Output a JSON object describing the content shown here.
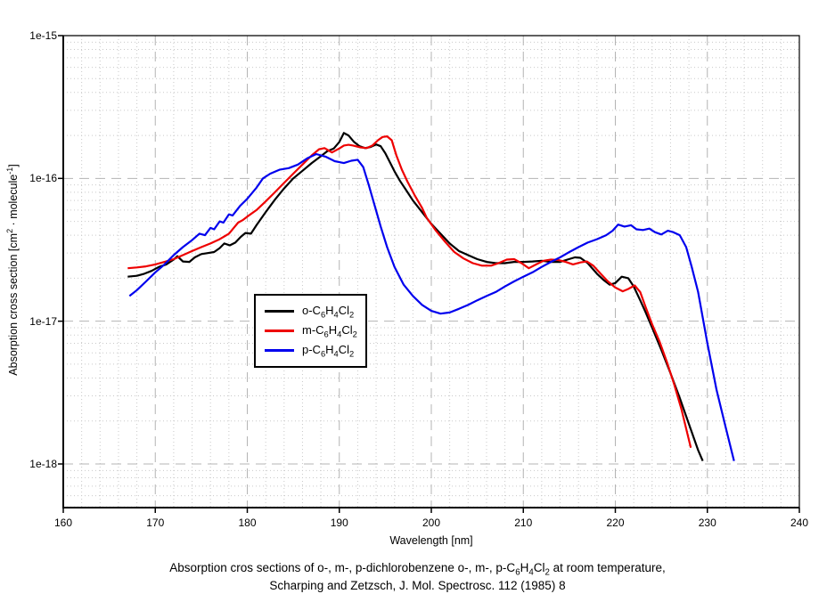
{
  "page": {
    "background": "#ffffff"
  },
  "chart_data": {
    "type": "line",
    "title": "",
    "xlabel": "Wavelength [nm]",
    "ylabel": "Absorption cross section [cm^2 · molecule^-1]",
    "yscale": "log",
    "xlim": [
      160,
      240
    ],
    "ylim": [
      4.9e-19,
      1e-15
    ],
    "grid": {
      "major_color": "#b4b4b4",
      "minor_color": "#c9c9c9",
      "major_dash": "11 7",
      "minor_dash": "1 3",
      "x_minor_step_nm": 2
    },
    "x_major_ticks": [
      160,
      170,
      180,
      190,
      200,
      210,
      220,
      230,
      240
    ],
    "y_major_ticks": [
      {
        "label": "1e-15",
        "value": 1e-15
      },
      {
        "label": "1e-16",
        "value": 1e-16
      },
      {
        "label": "1e-17",
        "value": 1e-17
      },
      {
        "label": "1e-18",
        "value": 1e-18
      }
    ],
    "legend": {
      "position": "inside-left-middle"
    },
    "series": [
      {
        "name": "o-C_6H_4Cl_2",
        "color": "#000000",
        "points": [
          [
            167.0,
            2.05e-17
          ],
          [
            168.0,
            2.08e-17
          ],
          [
            168.8,
            2.15e-17
          ],
          [
            169.6,
            2.25e-17
          ],
          [
            170.4,
            2.4e-17
          ],
          [
            171.2,
            2.5e-17
          ],
          [
            172.0,
            2.7e-17
          ],
          [
            172.4,
            2.85e-17
          ],
          [
            173.0,
            2.62e-17
          ],
          [
            173.7,
            2.6e-17
          ],
          [
            174.3,
            2.8e-17
          ],
          [
            175.0,
            2.95e-17
          ],
          [
            175.7,
            3e-17
          ],
          [
            176.4,
            3.05e-17
          ],
          [
            177.0,
            3.25e-17
          ],
          [
            177.5,
            3.5e-17
          ],
          [
            178.1,
            3.4e-17
          ],
          [
            178.7,
            3.55e-17
          ],
          [
            179.3,
            3.9e-17
          ],
          [
            179.8,
            4.15e-17
          ],
          [
            180.4,
            4.1e-17
          ],
          [
            181.0,
            4.7e-17
          ],
          [
            182.0,
            5.8e-17
          ],
          [
            183.0,
            7.1e-17
          ],
          [
            184.0,
            8.5e-17
          ],
          [
            185.0,
            1e-16
          ],
          [
            186.0,
            1.13e-16
          ],
          [
            187.0,
            1.28e-16
          ],
          [
            188.0,
            1.43e-16
          ],
          [
            188.7,
            1.55e-16
          ],
          [
            189.4,
            1.62e-16
          ],
          [
            190.0,
            1.8e-16
          ],
          [
            190.5,
            2.08e-16
          ],
          [
            191.0,
            2e-16
          ],
          [
            191.6,
            1.8e-16
          ],
          [
            192.2,
            1.68e-16
          ],
          [
            192.8,
            1.63e-16
          ],
          [
            193.4,
            1.66e-16
          ],
          [
            194.0,
            1.73e-16
          ],
          [
            194.5,
            1.68e-16
          ],
          [
            195.0,
            1.5e-16
          ],
          [
            195.5,
            1.3e-16
          ],
          [
            196.0,
            1.12e-16
          ],
          [
            196.6,
            9.6e-17
          ],
          [
            197.2,
            8.4e-17
          ],
          [
            198.0,
            7e-17
          ],
          [
            199.0,
            5.8e-17
          ],
          [
            200.0,
            4.8e-17
          ],
          [
            201.0,
            4.1e-17
          ],
          [
            202.0,
            3.5e-17
          ],
          [
            203.0,
            3.1e-17
          ],
          [
            204.0,
            2.9e-17
          ],
          [
            205.0,
            2.72e-17
          ],
          [
            206.0,
            2.6e-17
          ],
          [
            207.0,
            2.55e-17
          ],
          [
            208.0,
            2.55e-17
          ],
          [
            209.0,
            2.6e-17
          ],
          [
            210.0,
            2.6e-17
          ],
          [
            211.0,
            2.62e-17
          ],
          [
            212.0,
            2.65e-17
          ],
          [
            213.0,
            2.6e-17
          ],
          [
            214.0,
            2.6e-17
          ],
          [
            214.8,
            2.7e-17
          ],
          [
            215.6,
            2.8e-17
          ],
          [
            216.2,
            2.78e-17
          ],
          [
            217.0,
            2.55e-17
          ],
          [
            218.0,
            2.15e-17
          ],
          [
            218.7,
            1.95e-17
          ],
          [
            219.4,
            1.8e-17
          ],
          [
            220.0,
            1.85e-17
          ],
          [
            220.7,
            2.05e-17
          ],
          [
            221.4,
            2e-17
          ],
          [
            222.0,
            1.75e-17
          ],
          [
            222.7,
            1.4e-17
          ],
          [
            223.3,
            1.15e-17
          ],
          [
            224.0,
            9e-18
          ],
          [
            225.0,
            6.3e-18
          ],
          [
            226.0,
            4.3e-18
          ],
          [
            227.0,
            2.9e-18
          ],
          [
            228.0,
            1.9e-18
          ],
          [
            229.0,
            1.25e-18
          ],
          [
            229.5,
            1.05e-18
          ]
        ]
      },
      {
        "name": "m-C_6H_4Cl_2",
        "color": "#ee0000",
        "points": [
          [
            167.0,
            2.35e-17
          ],
          [
            168.0,
            2.38e-17
          ],
          [
            169.0,
            2.42e-17
          ],
          [
            170.0,
            2.5e-17
          ],
          [
            171.0,
            2.6e-17
          ],
          [
            172.0,
            2.72e-17
          ],
          [
            173.0,
            2.9e-17
          ],
          [
            174.0,
            3.1e-17
          ],
          [
            175.0,
            3.3e-17
          ],
          [
            176.0,
            3.5e-17
          ],
          [
            177.0,
            3.75e-17
          ],
          [
            178.0,
            4.1e-17
          ],
          [
            179.0,
            4.9e-17
          ],
          [
            179.5,
            5.1e-17
          ],
          [
            180.0,
            5.4e-17
          ],
          [
            181.0,
            6e-17
          ],
          [
            182.0,
            6.9e-17
          ],
          [
            183.0,
            8e-17
          ],
          [
            184.0,
            9.3e-17
          ],
          [
            185.0,
            1.08e-16
          ],
          [
            186.0,
            1.25e-16
          ],
          [
            187.0,
            1.45e-16
          ],
          [
            187.8,
            1.6e-16
          ],
          [
            188.4,
            1.63e-16
          ],
          [
            189.2,
            1.52e-16
          ],
          [
            190.0,
            1.62e-16
          ],
          [
            190.5,
            1.7e-16
          ],
          [
            191.0,
            1.72e-16
          ],
          [
            191.5,
            1.7e-16
          ],
          [
            192.3,
            1.65e-16
          ],
          [
            193.0,
            1.63e-16
          ],
          [
            193.6,
            1.7e-16
          ],
          [
            194.2,
            1.85e-16
          ],
          [
            194.7,
            1.95e-16
          ],
          [
            195.2,
            1.97e-16
          ],
          [
            195.7,
            1.85e-16
          ],
          [
            196.2,
            1.45e-16
          ],
          [
            196.8,
            1.15e-16
          ],
          [
            197.4,
            9.5e-17
          ],
          [
            198.2,
            7.6e-17
          ],
          [
            199.0,
            6.2e-17
          ],
          [
            199.5,
            5.3e-17
          ],
          [
            200.5,
            4.3e-17
          ],
          [
            201.5,
            3.6e-17
          ],
          [
            202.5,
            3.05e-17
          ],
          [
            203.5,
            2.75e-17
          ],
          [
            204.5,
            2.55e-17
          ],
          [
            205.5,
            2.45e-17
          ],
          [
            206.5,
            2.45e-17
          ],
          [
            207.3,
            2.55e-17
          ],
          [
            208.2,
            2.7e-17
          ],
          [
            209.0,
            2.72e-17
          ],
          [
            209.8,
            2.55e-17
          ],
          [
            210.6,
            2.35e-17
          ],
          [
            211.4,
            2.5e-17
          ],
          [
            212.2,
            2.65e-17
          ],
          [
            213.0,
            2.7e-17
          ],
          [
            213.8,
            2.68e-17
          ],
          [
            214.6,
            2.6e-17
          ],
          [
            215.4,
            2.5e-17
          ],
          [
            216.2,
            2.58e-17
          ],
          [
            216.9,
            2.62e-17
          ],
          [
            217.6,
            2.45e-17
          ],
          [
            218.4,
            2.15e-17
          ],
          [
            219.2,
            1.9e-17
          ],
          [
            220.0,
            1.72e-17
          ],
          [
            220.8,
            1.62e-17
          ],
          [
            221.4,
            1.68e-17
          ],
          [
            222.1,
            1.78e-17
          ],
          [
            222.7,
            1.6e-17
          ],
          [
            223.3,
            1.25e-17
          ],
          [
            224.0,
            9.5e-18
          ],
          [
            224.8,
            7.2e-18
          ],
          [
            225.6,
            5.2e-18
          ],
          [
            226.4,
            3.6e-18
          ],
          [
            227.2,
            2.4e-18
          ],
          [
            228.2,
            1.3e-18
          ]
        ]
      },
      {
        "name": "p-C_6H_4Cl_2",
        "color": "#0000ee",
        "points": [
          [
            167.2,
            1.5e-17
          ],
          [
            168.0,
            1.65e-17
          ],
          [
            169.0,
            1.9e-17
          ],
          [
            170.0,
            2.2e-17
          ],
          [
            171.0,
            2.5e-17
          ],
          [
            172.0,
            2.9e-17
          ],
          [
            173.0,
            3.3e-17
          ],
          [
            174.0,
            3.7e-17
          ],
          [
            174.8,
            4.1e-17
          ],
          [
            175.4,
            4e-17
          ],
          [
            176.0,
            4.5e-17
          ],
          [
            176.4,
            4.4e-17
          ],
          [
            177.0,
            5e-17
          ],
          [
            177.4,
            4.9e-17
          ],
          [
            178.0,
            5.6e-17
          ],
          [
            178.4,
            5.5e-17
          ],
          [
            179.2,
            6.4e-17
          ],
          [
            180.0,
            7.2e-17
          ],
          [
            181.0,
            8.6e-17
          ],
          [
            181.7,
            1e-16
          ],
          [
            182.5,
            1.08e-16
          ],
          [
            183.5,
            1.15e-16
          ],
          [
            184.5,
            1.18e-16
          ],
          [
            185.5,
            1.25e-16
          ],
          [
            186.5,
            1.38e-16
          ],
          [
            187.5,
            1.48e-16
          ],
          [
            188.5,
            1.42e-16
          ],
          [
            189.5,
            1.32e-16
          ],
          [
            190.5,
            1.28e-16
          ],
          [
            191.3,
            1.33e-16
          ],
          [
            192.0,
            1.35e-16
          ],
          [
            192.6,
            1.2e-16
          ],
          [
            193.2,
            9e-17
          ],
          [
            193.8,
            6.6e-17
          ],
          [
            194.5,
            4.6e-17
          ],
          [
            195.2,
            3.3e-17
          ],
          [
            196.0,
            2.4e-17
          ],
          [
            197.0,
            1.8e-17
          ],
          [
            198.0,
            1.5e-17
          ],
          [
            199.0,
            1.3e-17
          ],
          [
            200.0,
            1.18e-17
          ],
          [
            201.0,
            1.13e-17
          ],
          [
            202.0,
            1.15e-17
          ],
          [
            203.0,
            1.22e-17
          ],
          [
            204.0,
            1.3e-17
          ],
          [
            205.0,
            1.4e-17
          ],
          [
            206.0,
            1.5e-17
          ],
          [
            207.0,
            1.6e-17
          ],
          [
            208.0,
            1.75e-17
          ],
          [
            209.0,
            1.9e-17
          ],
          [
            210.0,
            2.05e-17
          ],
          [
            211.0,
            2.2e-17
          ],
          [
            212.0,
            2.4e-17
          ],
          [
            213.0,
            2.6e-17
          ],
          [
            214.0,
            2.8e-17
          ],
          [
            215.0,
            3.05e-17
          ],
          [
            216.0,
            3.3e-17
          ],
          [
            217.0,
            3.55e-17
          ],
          [
            218.0,
            3.75e-17
          ],
          [
            219.0,
            4e-17
          ],
          [
            219.7,
            4.3e-17
          ],
          [
            220.3,
            4.75e-17
          ],
          [
            221.0,
            4.6e-17
          ],
          [
            221.7,
            4.7e-17
          ],
          [
            222.3,
            4.4e-17
          ],
          [
            223.0,
            4.35e-17
          ],
          [
            223.7,
            4.45e-17
          ],
          [
            224.3,
            4.2e-17
          ],
          [
            225.0,
            4.05e-17
          ],
          [
            225.7,
            4.3e-17
          ],
          [
            226.3,
            4.2e-17
          ],
          [
            227.0,
            4e-17
          ],
          [
            227.7,
            3.3e-17
          ],
          [
            228.3,
            2.4e-17
          ],
          [
            229.0,
            1.6e-17
          ],
          [
            230.0,
            7e-18
          ],
          [
            231.0,
            3.3e-18
          ],
          [
            232.0,
            1.8e-18
          ],
          [
            232.9,
            1.05e-18
          ]
        ]
      }
    ]
  },
  "caption": {
    "line1": "Absorption cros sections of o-, m-, p-dichlorobenzene o-, m-, p-C_6H_4Cl_2 at room temperature,",
    "line2": "Scharping and Zetzsch, J. Mol. Spectrosc. 112 (1985) 8"
  }
}
